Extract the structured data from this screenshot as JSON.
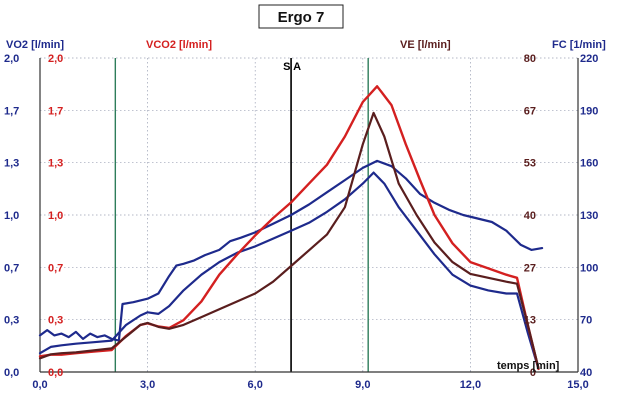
{
  "chart_data": {
    "type": "line",
    "title": "Ergo 7",
    "xlabel": "temps [min]",
    "xlim": [
      0,
      15
    ],
    "x_ticks": [
      "0,0",
      "3,0",
      "6,0",
      "9,0",
      "12,0",
      "15,0"
    ],
    "axes": [
      {
        "label": "VO2 [l/min]",
        "side": "left-outer",
        "color": "#1e2a8c",
        "range": [
          0,
          2.0
        ],
        "ticks": [
          "0,0",
          "0,3",
          "0,7",
          "1,0",
          "1,3",
          "1,7",
          "2,0"
        ]
      },
      {
        "label": "VCO2 [l/min]",
        "side": "left-inner",
        "color": "#d42020",
        "range": [
          0,
          2.0
        ],
        "ticks": [
          "0,0",
          "0,3",
          "0,7",
          "1,0",
          "1,3",
          "1,7",
          "2,0"
        ]
      },
      {
        "label": "VE [l/min]",
        "side": "right-inner",
        "color": "#5a1e1e",
        "range": [
          0,
          80
        ],
        "ticks": [
          "0",
          "13",
          "27",
          "40",
          "53",
          "67",
          "80"
        ]
      },
      {
        "label": "FC [1/min]",
        "side": "right-outer",
        "color": "#1e2a8c",
        "range": [
          40,
          220
        ],
        "ticks": [
          "40",
          "70",
          "100",
          "130",
          "160",
          "190",
          "220"
        ]
      }
    ],
    "markers": [
      {
        "label": "",
        "x": 2.1,
        "color": "#2e7d5b"
      },
      {
        "label": "S",
        "x": 7.0,
        "color": "#000000"
      },
      {
        "label": "A",
        "x": 7.0,
        "color": "#000000"
      },
      {
        "label": "",
        "x": 9.15,
        "color": "#2e7d5b"
      }
    ],
    "series": [
      {
        "name": "FC",
        "axis": 3,
        "color": "#1e2a8c",
        "width": 2.2,
        "x": [
          0,
          0.2,
          0.4,
          0.6,
          0.8,
          1.0,
          1.2,
          1.4,
          1.6,
          1.8,
          2.0,
          2.2,
          2.3,
          2.6,
          3.0,
          3.3,
          3.6,
          3.8,
          4.0,
          4.3,
          4.6,
          5.0,
          5.3,
          5.6,
          6.0,
          6.5,
          7.0,
          7.5,
          8.0,
          8.5,
          9.0,
          9.4,
          9.8,
          10.2,
          10.6,
          11.0,
          11.4,
          11.8,
          12.2,
          12.6,
          13.0,
          13.4,
          13.7,
          14.0
        ],
        "y": [
          61,
          64,
          61,
          62,
          60,
          63,
          59,
          62,
          60,
          61,
          59,
          58,
          79,
          80,
          82,
          85,
          95,
          101,
          102,
          104,
          107,
          110,
          115,
          117,
          120,
          125,
          130,
          136,
          143,
          150,
          157,
          161,
          158,
          151,
          142,
          137,
          133,
          130,
          128,
          126,
          121,
          113,
          110,
          111
        ]
      },
      {
        "name": "VO2",
        "axis": 0,
        "color": "#1e2a8c",
        "width": 2.2,
        "x": [
          0,
          0.3,
          0.6,
          1.0,
          1.5,
          2.0,
          2.4,
          2.8,
          3.0,
          3.3,
          3.6,
          4.0,
          4.5,
          5.0,
          5.5,
          6.0,
          6.5,
          7.0,
          7.5,
          8.0,
          8.5,
          9.0,
          9.3,
          9.6,
          10.0,
          10.5,
          11.0,
          11.5,
          12.0,
          12.5,
          13.0,
          13.3,
          13.6,
          13.9
        ],
        "y": [
          0.12,
          0.16,
          0.17,
          0.18,
          0.19,
          0.2,
          0.3,
          0.36,
          0.38,
          0.37,
          0.42,
          0.52,
          0.62,
          0.7,
          0.76,
          0.8,
          0.85,
          0.9,
          0.95,
          1.02,
          1.1,
          1.2,
          1.27,
          1.2,
          1.05,
          0.9,
          0.75,
          0.62,
          0.55,
          0.52,
          0.5,
          0.5,
          0.25,
          0.02
        ]
      },
      {
        "name": "VCO2",
        "axis": 1,
        "color": "#d42020",
        "width": 2.4,
        "x": [
          0,
          0.3,
          0.6,
          1.0,
          1.5,
          2.0,
          2.4,
          2.8,
          3.0,
          3.3,
          3.6,
          4.0,
          4.5,
          5.0,
          5.5,
          6.0,
          6.5,
          7.0,
          7.5,
          8.0,
          8.5,
          9.0,
          9.4,
          9.8,
          10.2,
          10.6,
          11.0,
          11.5,
          12.0,
          12.5,
          13.0,
          13.3,
          13.6,
          13.9
        ],
        "y": [
          0.1,
          0.11,
          0.11,
          0.12,
          0.13,
          0.14,
          0.23,
          0.3,
          0.31,
          0.29,
          0.28,
          0.33,
          0.45,
          0.62,
          0.75,
          0.87,
          0.98,
          1.08,
          1.2,
          1.32,
          1.5,
          1.72,
          1.82,
          1.7,
          1.45,
          1.22,
          1.0,
          0.82,
          0.7,
          0.66,
          0.62,
          0.6,
          0.3,
          0.02
        ]
      },
      {
        "name": "VE",
        "axis": 2,
        "color": "#5a1e1e",
        "width": 2.2,
        "x": [
          0,
          0.3,
          0.6,
          1.0,
          1.5,
          2.0,
          2.4,
          2.8,
          3.0,
          3.3,
          3.6,
          4.0,
          4.5,
          5.0,
          5.5,
          6.0,
          6.5,
          7.0,
          7.5,
          8.0,
          8.5,
          9.0,
          9.3,
          9.6,
          10.0,
          10.5,
          11.0,
          11.5,
          12.0,
          12.5,
          13.0,
          13.3,
          13.6,
          13.9
        ],
        "y": [
          3.5,
          4.5,
          4.8,
          5,
          5.5,
          6,
          9,
          12,
          12.5,
          11.5,
          11,
          12,
          14,
          16,
          18,
          20,
          23,
          27,
          31,
          35,
          42,
          58,
          66,
          60,
          48,
          40,
          33,
          28,
          25,
          24,
          23,
          22.5,
          12,
          1
        ]
      }
    ]
  }
}
